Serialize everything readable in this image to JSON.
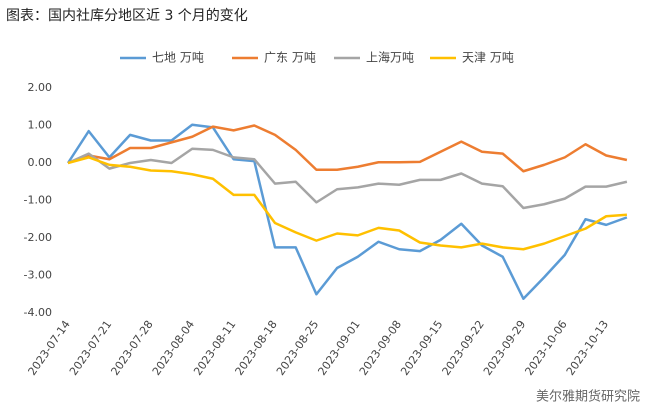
{
  "chart_data": {
    "type": "line",
    "title": "图表：国内社库分地区近 3 个月的变化",
    "categories": [
      "2023-07-14",
      null,
      "2023-07-21",
      null,
      "2023-07-28",
      null,
      "2023-08-04",
      null,
      "2023-08-11",
      null,
      "2023-08-18",
      null,
      "2023-08-25",
      null,
      "2023-09-01",
      null,
      "2023-09-08",
      null,
      "2023-09-15",
      null,
      "2023-09-22",
      null,
      "2023-09-29",
      null,
      "2023-10-06",
      null,
      "2023-10-13",
      null
    ],
    "series": [
      {
        "name": "七地 万吨",
        "color": "#5b9bd5",
        "values": [
          0,
          0.85,
          0.15,
          0.75,
          0.6,
          0.6,
          1.02,
          0.95,
          0.1,
          0.05,
          -2.25,
          -2.25,
          -3.5,
          -2.8,
          -2.5,
          -2.1,
          -2.3,
          -2.35,
          -2.05,
          -1.62,
          -2.2,
          -2.5,
          -3.62,
          -3.05,
          -2.45,
          -1.5,
          -1.65,
          -1.45
        ]
      },
      {
        "name": "广东 万吨",
        "color": "#ed7d31",
        "values": [
          0,
          0.2,
          0.1,
          0.4,
          0.4,
          0.55,
          0.7,
          0.97,
          0.87,
          1.0,
          0.75,
          0.35,
          -0.18,
          -0.18,
          -0.1,
          0.02,
          0.02,
          0.03,
          0.3,
          0.57,
          0.3,
          0.25,
          -0.22,
          -0.05,
          0.15,
          0.5,
          0.2,
          0.08
        ]
      },
      {
        "name": "上海万吨",
        "color": "#a5a5a5",
        "values": [
          0,
          0.25,
          -0.15,
          0,
          0.08,
          0,
          0.38,
          0.35,
          0.15,
          0.1,
          -0.55,
          -0.5,
          -1.05,
          -0.7,
          -0.65,
          -0.55,
          -0.58,
          -0.45,
          -0.45,
          -0.28,
          -0.55,
          -0.62,
          -1.2,
          -1.1,
          -0.95,
          -0.63,
          -0.63,
          -0.5
        ]
      },
      {
        "name": "天津 万吨",
        "color": "#ffc000",
        "values": [
          0,
          0.15,
          -0.05,
          -0.1,
          -0.2,
          -0.22,
          -0.3,
          -0.42,
          -0.85,
          -0.85,
          -1.6,
          -1.85,
          -2.07,
          -1.88,
          -1.93,
          -1.73,
          -1.8,
          -2.12,
          -2.2,
          -2.25,
          -2.15,
          -2.25,
          -2.3,
          -2.15,
          -1.95,
          -1.75,
          -1.42,
          -1.38
        ]
      }
    ],
    "ylim": [
      -4,
      2
    ],
    "yticks": [
      {
        "value": -4,
        "label": "-4.00"
      },
      {
        "value": -3,
        "label": "-3.00"
      },
      {
        "value": -2,
        "label": "-2.00"
      },
      {
        "value": -1,
        "label": "-1.00"
      },
      {
        "value": 0,
        "label": "0.00"
      },
      {
        "value": 1,
        "label": "1.00"
      },
      {
        "value": 2,
        "label": "2.00"
      }
    ],
    "watermark": "美尔雅期货研究院"
  }
}
